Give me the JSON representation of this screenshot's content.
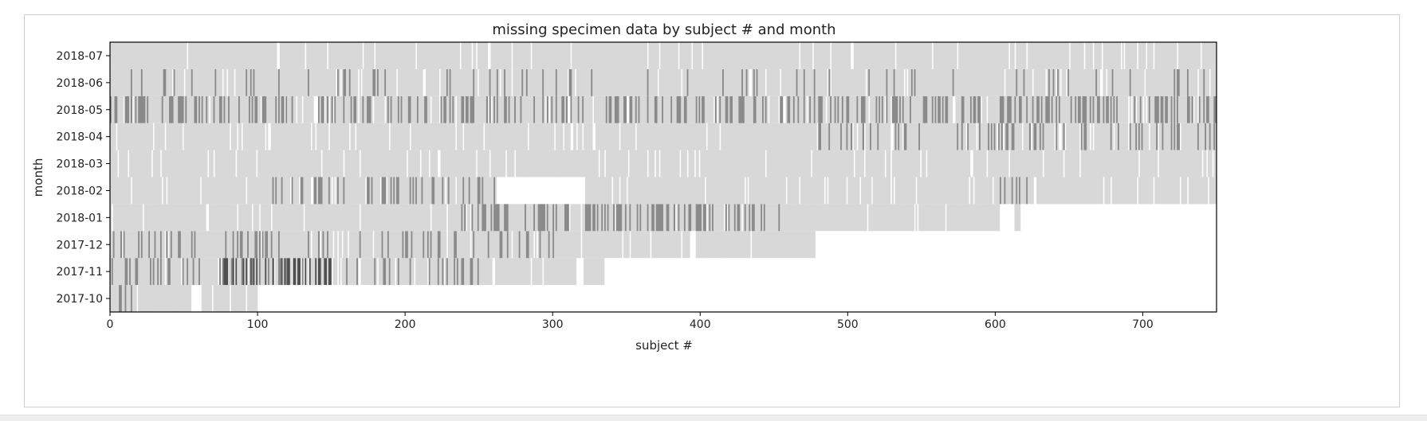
{
  "chart_data": {
    "type": "heatmap",
    "title": "missing specimen data by subject # and month",
    "xlabel": "subject #",
    "ylabel": "month",
    "xlim": [
      0,
      750
    ],
    "xticks": [
      0,
      100,
      200,
      300,
      400,
      500,
      600,
      700
    ],
    "months": [
      "2017-10",
      "2017-11",
      "2017-12",
      "2018-01",
      "2018-02",
      "2018-03",
      "2018-04",
      "2018-05",
      "2018-06",
      "2018-07"
    ],
    "value_legend": {
      "none": "#ffffff",
      "light": "#d8d8d8",
      "mid": "#8a8a8a",
      "dark": "#505050"
    },
    "rows": [
      {
        "month": "2017-10",
        "coverage": [
          [
            0,
            55
          ],
          [
            62,
            100
          ]
        ],
        "mid_density": 0.12,
        "dark_density": 0.03,
        "mid_ranges": [
          [
            0,
            20
          ]
        ]
      },
      {
        "month": "2017-11",
        "coverage": [
          [
            0,
            316
          ],
          [
            321,
            335
          ]
        ],
        "mid_density": 0.25,
        "dark_density": 0.15,
        "mid_ranges": [
          [
            0,
            155
          ],
          [
            160,
            250
          ]
        ],
        "dark_ranges": [
          [
            70,
            150
          ]
        ]
      },
      {
        "month": "2017-12",
        "coverage": [
          [
            0,
            393
          ],
          [
            397,
            480
          ]
        ],
        "mid_density": 0.18,
        "dark_density": 0.03,
        "mid_ranges": [
          [
            0,
            310
          ]
        ]
      },
      {
        "month": "2018-01",
        "coverage": [
          [
            0,
            603
          ],
          [
            613,
            617
          ]
        ],
        "mid_density": 0.35,
        "dark_density": 0.02,
        "mid_ranges": [
          [
            238,
            455
          ]
        ]
      },
      {
        "month": "2018-02",
        "coverage": [
          [
            0,
            262
          ],
          [
            322,
            750
          ]
        ],
        "mid_density": 0.25,
        "dark_density": 0.02,
        "mid_ranges": [
          [
            100,
            262
          ],
          [
            602,
            625
          ]
        ]
      },
      {
        "month": "2018-03",
        "coverage": [
          [
            0,
            750
          ]
        ],
        "mid_density": 0.0,
        "dark_density": 0.0,
        "mid_ranges": []
      },
      {
        "month": "2018-04",
        "coverage": [
          [
            0,
            750
          ]
        ],
        "mid_density": 0.2,
        "dark_density": 0.01,
        "mid_ranges": [
          [
            480,
            750
          ]
        ]
      },
      {
        "month": "2018-05",
        "coverage": [
          [
            0,
            750
          ]
        ],
        "mid_density": 0.35,
        "dark_density": 0.02,
        "mid_ranges": [
          [
            0,
            750
          ]
        ]
      },
      {
        "month": "2018-06",
        "coverage": [
          [
            0,
            750
          ]
        ],
        "mid_density": 0.08,
        "dark_density": 0.01,
        "mid_ranges": [
          [
            0,
            750
          ]
        ]
      },
      {
        "month": "2018-07",
        "coverage": [
          [
            0,
            750
          ]
        ],
        "mid_density": 0.0,
        "dark_density": 0.0,
        "mid_ranges": []
      }
    ],
    "grid": false,
    "legend": "none"
  }
}
